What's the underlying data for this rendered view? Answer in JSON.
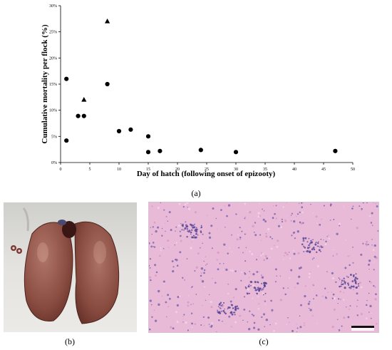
{
  "chart_data": {
    "type": "scatter",
    "xlabel": "Day of hatch (following onset of epizooty)",
    "ylabel": "Cumulative mortality per flock (%)",
    "xlim": [
      0,
      50
    ],
    "ylim": [
      0,
      30
    ],
    "xticks": [
      "0",
      "5",
      "10",
      "15",
      "20",
      "25",
      "30",
      "35",
      "40",
      "45",
      "50"
    ],
    "yticks": [
      "0%",
      "5%",
      "10%",
      "15%",
      "20%",
      "25%",
      "30%"
    ],
    "grid": false,
    "legend": "none",
    "series": [
      {
        "marker": "circle",
        "points": [
          {
            "x": 1,
            "y": 16
          },
          {
            "x": 1,
            "y": 4.2
          },
          {
            "x": 3,
            "y": 8.9
          },
          {
            "x": 4,
            "y": 8.9
          },
          {
            "x": 8,
            "y": 15
          },
          {
            "x": 10,
            "y": 6
          },
          {
            "x": 12,
            "y": 6.3
          },
          {
            "x": 15,
            "y": 5
          },
          {
            "x": 15,
            "y": 2
          },
          {
            "x": 17,
            "y": 2.2
          },
          {
            "x": 24,
            "y": 2.4
          },
          {
            "x": 30,
            "y": 2
          },
          {
            "x": 47,
            "y": 2.2
          }
        ]
      },
      {
        "marker": "triangle",
        "points": [
          {
            "x": 4,
            "y": 12
          },
          {
            "x": 8,
            "y": 27
          }
        ]
      }
    ],
    "marker_color": "#000000"
  },
  "captions": {
    "a": "(a)",
    "b": "(b)",
    "c": "(c)"
  },
  "colors": {
    "liver": "#8a4a3e",
    "histology_pink": "#e7b9d8",
    "histology_purple": "#7a63b3",
    "photo_background": "#e7e6e2"
  }
}
